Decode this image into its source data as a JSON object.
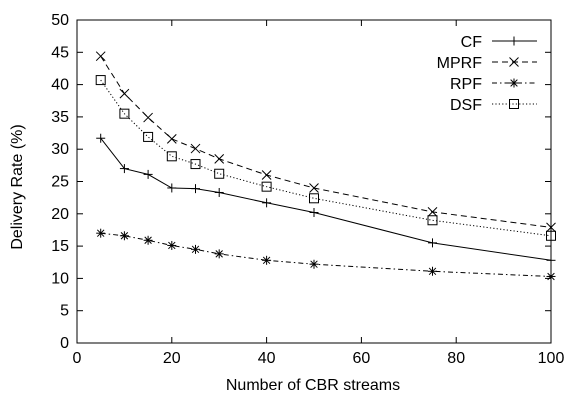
{
  "chart_data": {
    "type": "line",
    "xlabel": "Number of CBR streams",
    "ylabel": "Delivery Rate (%)",
    "xlim": [
      0,
      100
    ],
    "ylim": [
      0,
      50
    ],
    "xticks": [
      0,
      20,
      40,
      60,
      80,
      100
    ],
    "yticks": [
      0,
      5,
      10,
      15,
      20,
      25,
      30,
      35,
      40,
      45,
      50
    ],
    "grid": false,
    "legend_position": "top-right",
    "x": [
      5,
      10,
      15,
      20,
      25,
      30,
      40,
      50,
      75,
      100
    ],
    "series": [
      {
        "name": "CF",
        "marker": "plus",
        "dash": "solid",
        "values": [
          31.7,
          27.0,
          26.1,
          24.0,
          23.9,
          23.3,
          21.7,
          20.2,
          15.5,
          12.8
        ]
      },
      {
        "name": "MPRF",
        "marker": "x",
        "dash": "dashed",
        "values": [
          44.4,
          38.6,
          34.9,
          31.6,
          30.1,
          28.5,
          26.0,
          24.0,
          20.3,
          17.9
        ]
      },
      {
        "name": "RPF",
        "marker": "star",
        "dash": "dashdot",
        "values": [
          17.0,
          16.6,
          15.9,
          15.1,
          14.5,
          13.8,
          12.8,
          12.2,
          11.1,
          10.3
        ]
      },
      {
        "name": "DSF",
        "marker": "square",
        "dash": "dotted",
        "values": [
          40.7,
          35.5,
          31.9,
          28.9,
          27.7,
          26.2,
          24.2,
          22.4,
          19.0,
          16.6
        ]
      }
    ]
  }
}
